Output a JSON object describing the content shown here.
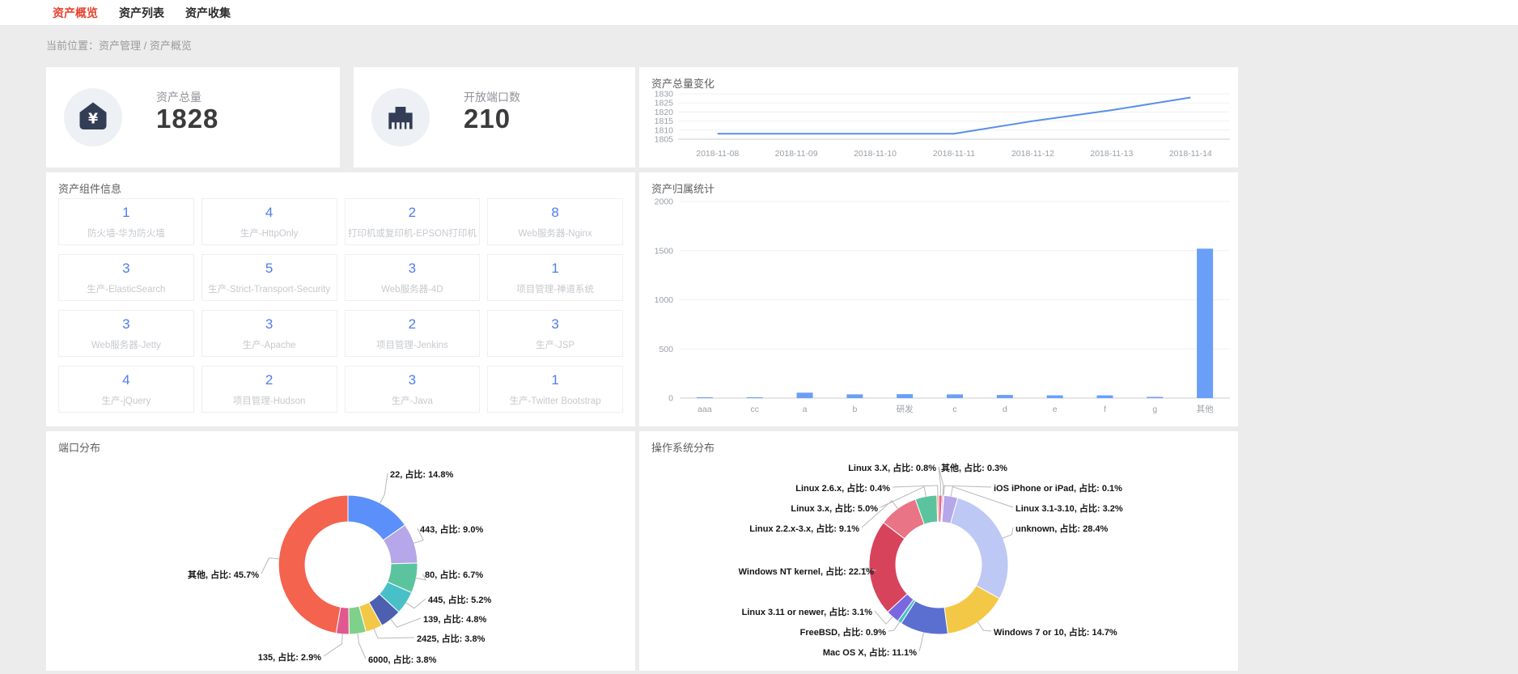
{
  "nav": {
    "tabs": [
      {
        "label": "资产概览",
        "active": true
      },
      {
        "label": "资产列表",
        "active": false
      },
      {
        "label": "资产收集",
        "active": false
      }
    ]
  },
  "breadcrumb": {
    "label": "当前位置：资产管理 / 资产概览"
  },
  "stats": [
    {
      "label": "资产总量",
      "value": "1828",
      "icon": "yen-asset-icon"
    },
    {
      "label": "开放端口数",
      "value": "210",
      "icon": "ethernet-port-icon"
    }
  ],
  "components": {
    "title": "资产组件信息",
    "items": [
      {
        "count": "1",
        "label": "防火墙-华为防火墙"
      },
      {
        "count": "4",
        "label": "生产-HttpOnly"
      },
      {
        "count": "2",
        "label": "打印机或复印机-EPSON打印机"
      },
      {
        "count": "8",
        "label": "Web服务器-Nginx"
      },
      {
        "count": "3",
        "label": "生产-ElasticSearch"
      },
      {
        "count": "5",
        "label": "生产-Strict-Transport-Security"
      },
      {
        "count": "3",
        "label": "Web服务器-4D"
      },
      {
        "count": "1",
        "label": "项目管理-禅道系统"
      },
      {
        "count": "3",
        "label": "Web服务器-Jetty"
      },
      {
        "count": "3",
        "label": "生产-Apache"
      },
      {
        "count": "2",
        "label": "项目管理-Jenkins"
      },
      {
        "count": "3",
        "label": "生产-JSP"
      },
      {
        "count": "4",
        "label": "生产-jQuery"
      },
      {
        "count": "2",
        "label": "项目管理-Hudson"
      },
      {
        "count": "3",
        "label": "生产-Java"
      },
      {
        "count": "1",
        "label": "生产-Twitter Bootstrap"
      }
    ]
  },
  "colors": {
    "page_bg": "#ececec",
    "panel_bg": "#ffffff",
    "accent_red": "#e5432e",
    "line_blue": "#5A8FE8",
    "bar_blue": "#6A9FF8",
    "icon_navy": "#333D55",
    "icon_circle_bg": "#EDF0F4",
    "count_blue": "#4F7DF0",
    "grid_line": "#f1f1f1",
    "axis_line": "#cccccc",
    "axis_text": "#9aa0a6"
  },
  "chart_data": [
    {
      "id": "asset_trend",
      "type": "line",
      "title": "资产总量变化",
      "x": [
        "2018-11-08",
        "2018-11-09",
        "2018-11-10",
        "2018-11-11",
        "2018-11-12",
        "2018-11-13",
        "2018-11-14"
      ],
      "values": [
        1808,
        1808,
        1808,
        1808,
        1815,
        1821,
        1828
      ],
      "xlabel": "",
      "ylabel": "",
      "ylim": [
        1805,
        1830
      ],
      "yticks": [
        1805,
        1810,
        1815,
        1820,
        1825,
        1830
      ],
      "grid": true,
      "legend": "none",
      "color": "#5A8FE8"
    },
    {
      "id": "asset_ownership",
      "type": "bar",
      "title": "资产归属统计",
      "categories": [
        "aaa",
        "cc",
        "a",
        "b",
        "研发",
        "c",
        "d",
        "e",
        "f",
        "g",
        "其他"
      ],
      "values": [
        2,
        5,
        55,
        38,
        40,
        38,
        32,
        28,
        28,
        12,
        1520
      ],
      "xlabel": "",
      "ylabel": "",
      "ylim": [
        0,
        2000
      ],
      "yticks": [
        0,
        500,
        1000,
        1500,
        2000
      ],
      "grid": true,
      "legend": "none",
      "color": "#6A9FF8"
    },
    {
      "id": "port_distribution",
      "type": "pie",
      "title": "端口分布",
      "label_format": "{name}, 占比: {pct}%",
      "center": {
        "x": 373,
        "y": 165
      },
      "outer_r": 86,
      "inner_r": 53,
      "slices": [
        {
          "name": "22",
          "pct": "14.8",
          "color": "#5B8FF9",
          "label": {
            "x": 425,
            "y": 52,
            "align": "left"
          }
        },
        {
          "name": "443",
          "pct": "9.0",
          "color": "#B5A7E9",
          "label": {
            "x": 462,
            "y": 120,
            "align": "left"
          }
        },
        {
          "name": "80",
          "pct": "6.7",
          "color": "#5BC49F",
          "label": {
            "x": 468,
            "y": 176,
            "align": "left"
          }
        },
        {
          "name": "445",
          "pct": "5.2",
          "color": "#49C0C8",
          "label": {
            "x": 472,
            "y": 207,
            "align": "left"
          }
        },
        {
          "name": "139",
          "pct": "4.8",
          "color": "#4C5FB0",
          "label": {
            "x": 466,
            "y": 231,
            "align": "left"
          }
        },
        {
          "name": "2425",
          "pct": "3.8",
          "color": "#F3C846",
          "label": {
            "x": 458,
            "y": 255,
            "align": "left"
          }
        },
        {
          "name": "6000",
          "pct": "3.8",
          "color": "#7FD08A",
          "label": {
            "x": 398,
            "y": 281,
            "align": "left"
          }
        },
        {
          "name": "135",
          "pct": "2.9",
          "color": "#E2588E",
          "label": {
            "x": 340,
            "y": 278,
            "align": "right"
          }
        },
        {
          "name": "其他",
          "pct": "45.7",
          "color": "#F3634E",
          "label": {
            "x": 263,
            "y": 176,
            "align": "right"
          }
        }
      ]
    },
    {
      "id": "os_distribution",
      "type": "pie",
      "title": "操作系统分布",
      "label_format": "{name}, 占比: {pct}%",
      "center": {
        "x": 370,
        "y": 165
      },
      "outer_r": 86,
      "inner_r": 53,
      "slices": [
        {
          "name": "Linux 3.X",
          "pct": "0.8",
          "color": "#E8689A",
          "label": {
            "x": 367,
            "y": 44,
            "align": "right"
          }
        },
        {
          "name": "其他",
          "pct": "0.3",
          "color": "#E25B5B",
          "label": {
            "x": 373,
            "y": 44,
            "align": "left"
          }
        },
        {
          "name": "iOS iPhone or iPad",
          "pct": "0.1",
          "color": "#8A5FD8",
          "label": {
            "x": 438,
            "y": 69,
            "align": "left"
          }
        },
        {
          "name": "Linux 3.1-3.10",
          "pct": "3.2",
          "color": "#B5A7E9",
          "label": {
            "x": 465,
            "y": 94,
            "align": "left"
          }
        },
        {
          "name": "unknown",
          "pct": "28.4",
          "color": "#BDC8F5",
          "label": {
            "x": 465,
            "y": 119,
            "align": "left"
          }
        },
        {
          "name": "Windows 7 or 10",
          "pct": "14.7",
          "color": "#F3C846",
          "label": {
            "x": 438,
            "y": 247,
            "align": "left"
          }
        },
        {
          "name": "Mac OS X",
          "pct": "11.1",
          "color": "#5B6FD0",
          "label": {
            "x": 343,
            "y": 272,
            "align": "right"
          }
        },
        {
          "name": "FreeBSD",
          "pct": "0.9",
          "color": "#49C0C8",
          "label": {
            "x": 305,
            "y": 247,
            "align": "right"
          }
        },
        {
          "name": "Linux 3.11 or newer",
          "pct": "3.1",
          "color": "#7B68E0",
          "label": {
            "x": 288,
            "y": 222,
            "align": "right"
          }
        },
        {
          "name": "Windows NT kernel",
          "pct": "22.1",
          "color": "#D8435C",
          "label": {
            "x": 290,
            "y": 172,
            "align": "right"
          }
        },
        {
          "name": "Linux 2.2.x-3.x",
          "pct": "9.1",
          "color": "#E87485",
          "label": {
            "x": 272,
            "y": 119,
            "align": "right"
          }
        },
        {
          "name": "Linux 3.x",
          "pct": "5.0",
          "color": "#5BC49F",
          "label": {
            "x": 295,
            "y": 94,
            "align": "right"
          }
        },
        {
          "name": "Linux 2.6.x",
          "pct": "0.4",
          "color": "#F09B59",
          "label": {
            "x": 310,
            "y": 69,
            "align": "right"
          }
        }
      ]
    }
  ]
}
